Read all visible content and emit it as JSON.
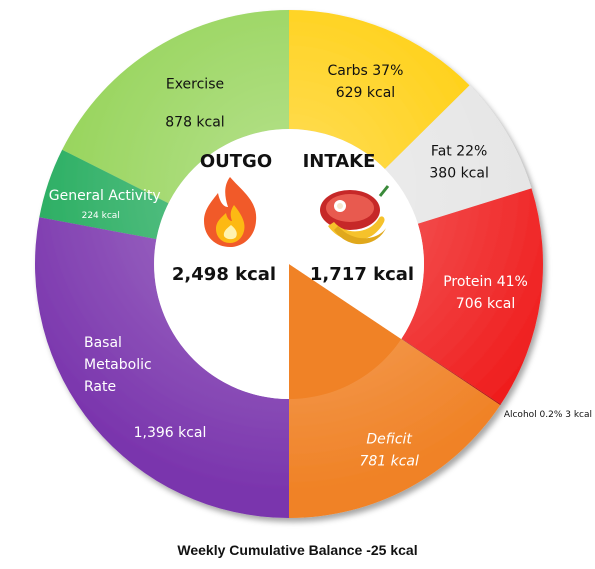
{
  "chart_data": {
    "type": "pie",
    "subtype": "donut-two-halves",
    "title": "Weekly Cumulative Balance -25 kcal",
    "outgo": {
      "heading": "OUTGO",
      "total_text": "2,498 kcal",
      "icon": "fire-icon",
      "segments": [
        {
          "name": "Exercise",
          "value": 878,
          "value_text": "878 kcal",
          "color": "#8fd14f"
        },
        {
          "name": "General Activity",
          "value": 224,
          "value_text": "224 kcal",
          "color": "#1faa5a"
        },
        {
          "name": "Basal Metabolic Rate",
          "name_lines": [
            "Basal",
            "Metabolic",
            "Rate"
          ],
          "value": 1396,
          "value_text": "1,396 kcal",
          "color": "#7a35ad"
        }
      ]
    },
    "intake": {
      "heading": "INTAKE",
      "total_text": "1,717 kcal",
      "icon": "food-icon",
      "segments": [
        {
          "name": "Carbs 37%",
          "value": 629,
          "value_text": "629 kcal",
          "color": "#ffcc00"
        },
        {
          "name": "Fat 22%",
          "value": 380,
          "value_text": "380 kcal",
          "color": "#e4e4e4"
        },
        {
          "name": "Protein 41%",
          "value": 706,
          "value_text": "706 kcal",
          "color": "#ef1c1c"
        },
        {
          "name": "Alcohol 0.2%",
          "value": 3,
          "value_text": "3 kcal",
          "label_text": "Alcohol 0.2% 3 kcal",
          "color": "#b01010"
        },
        {
          "name": "Deficit",
          "value": 781,
          "value_text": "781 kcal",
          "color": "#f08226"
        }
      ]
    }
  }
}
